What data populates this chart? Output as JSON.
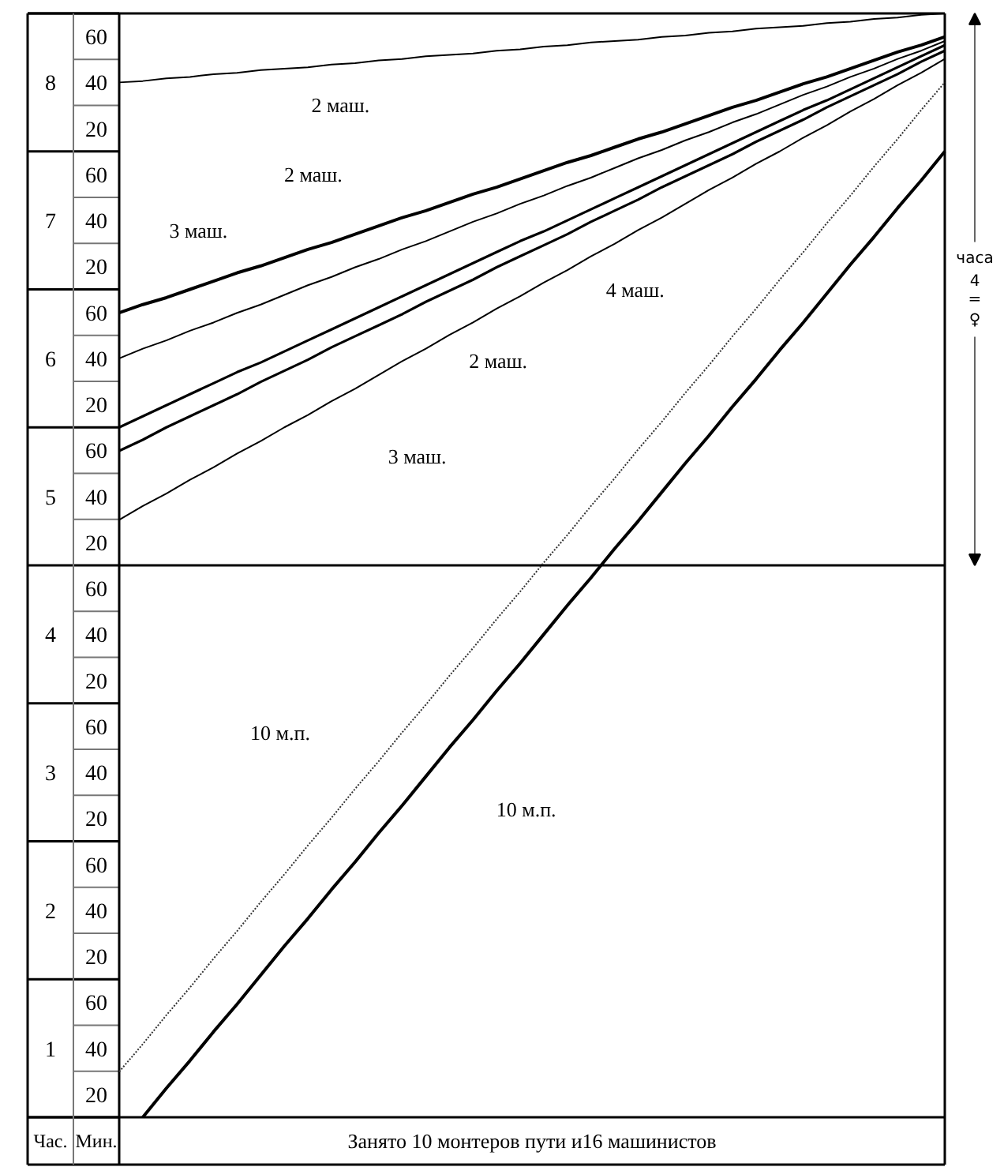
{
  "chart_data": {
    "type": "line",
    "categories": [
      null,
      null,
      null,
      null,
      null,
      null,
      null,
      null,
      null,
      null,
      null,
      null,
      null,
      null,
      null,
      null,
      null,
      null,
      null,
      null,
      null,
      null,
      null,
      null,
      null,
      null,
      null,
      null,
      null,
      null,
      null,
      null,
      null,
      null,
      null,
      null
    ],
    "ylim": [
      0.5,
      8.5
    ],
    "yticks": [
      1,
      2,
      3,
      4,
      5,
      6,
      7,
      8
    ],
    "ylabel": "Час.",
    "y2_categories": [
      "60",
      "40",
      "20",
      "60",
      "40",
      "20",
      "60",
      "40",
      "20",
      "60",
      "40",
      "20",
      "60",
      "40",
      "20",
      "60",
      "40",
      "20",
      "60",
      "40",
      "20",
      "60",
      "40",
      "20"
    ],
    "y2label": "Мин.",
    "tick_labels": "y",
    "line_style": "solid",
    "series": [
      {
        "color": "#000000",
        "values": [
          8.0,
          8.01,
          8.03,
          8.04,
          8.06,
          8.07,
          8.09,
          8.1,
          8.11,
          8.13,
          8.14,
          8.16,
          8.17,
          8.19,
          8.2,
          8.21,
          8.23,
          8.24,
          8.26,
          8.27,
          8.29,
          8.3,
          8.31,
          8.33,
          8.34,
          8.36,
          8.37,
          8.39,
          8.4,
          8.41,
          8.43,
          8.44,
          8.46,
          8.47,
          8.49,
          8.5
        ]
      },
      {
        "color": "#000000",
        "values": [
          6.33,
          6.39,
          6.44,
          6.5,
          6.56,
          6.62,
          6.67,
          6.73,
          6.79,
          6.84,
          6.9,
          6.96,
          7.02,
          7.07,
          7.13,
          7.19,
          7.24,
          7.3,
          7.36,
          7.42,
          7.47,
          7.53,
          7.59,
          7.64,
          7.7,
          7.76,
          7.82,
          7.87,
          7.93,
          7.99,
          8.04,
          8.1,
          8.16,
          8.22,
          8.27,
          8.33
        ]
      },
      {
        "color": "#000000",
        "values": [
          6.0,
          6.07,
          6.13,
          6.2,
          6.26,
          6.33,
          6.39,
          6.46,
          6.53,
          6.59,
          6.66,
          6.72,
          6.79,
          6.85,
          6.92,
          6.99,
          7.05,
          7.12,
          7.18,
          7.25,
          7.31,
          7.38,
          7.45,
          7.51,
          7.58,
          7.64,
          7.71,
          7.77,
          7.84,
          7.91,
          7.97,
          8.04,
          8.1,
          8.17,
          8.23,
          8.3
        ]
      },
      {
        "color": "#000000",
        "values": [
          5.5,
          5.58,
          5.66,
          5.74,
          5.82,
          5.9,
          5.97,
          6.05,
          6.13,
          6.21,
          6.29,
          6.37,
          6.45,
          6.53,
          6.61,
          6.69,
          6.77,
          6.85,
          6.92,
          7.0,
          7.08,
          7.16,
          7.24,
          7.32,
          7.4,
          7.48,
          7.56,
          7.64,
          7.72,
          7.8,
          7.87,
          7.95,
          8.03,
          8.11,
          8.19,
          8.27
        ]
      },
      {
        "color": "#000000",
        "values": [
          5.33,
          5.41,
          5.5,
          5.58,
          5.66,
          5.74,
          5.83,
          5.91,
          5.99,
          6.08,
          6.16,
          6.24,
          6.32,
          6.41,
          6.49,
          6.57,
          6.66,
          6.74,
          6.82,
          6.9,
          6.99,
          7.07,
          7.15,
          7.24,
          7.32,
          7.4,
          7.48,
          7.57,
          7.65,
          7.73,
          7.82,
          7.9,
          7.98,
          8.06,
          8.15,
          8.23
        ]
      },
      {
        "color": "#000000",
        "values": [
          4.83,
          4.93,
          5.02,
          5.12,
          5.21,
          5.31,
          5.4,
          5.5,
          5.59,
          5.69,
          5.78,
          5.88,
          5.98,
          6.07,
          6.17,
          6.26,
          6.36,
          6.45,
          6.55,
          6.64,
          6.74,
          6.83,
          6.93,
          7.02,
          7.12,
          7.22,
          7.31,
          7.41,
          7.5,
          7.6,
          7.69,
          7.79,
          7.88,
          7.98,
          8.07,
          8.17
        ]
      },
      {
        "color": "#333333",
        "line_style": "dotted",
        "values": [
          0.83,
          1.03,
          1.24,
          1.44,
          1.65,
          1.85,
          2.06,
          2.26,
          2.47,
          2.67,
          2.88,
          3.08,
          3.29,
          3.49,
          3.7,
          3.9,
          4.11,
          4.31,
          4.52,
          4.72,
          4.93,
          5.13,
          5.34,
          5.54,
          5.75,
          5.95,
          6.16,
          6.36,
          6.57,
          6.77,
          6.98,
          7.18,
          7.39,
          7.59,
          7.8,
          8.0
        ]
      },
      {
        "color": "#000000",
        "values": [
          null,
          0.5,
          0.71,
          0.91,
          1.12,
          1.32,
          1.53,
          1.74,
          1.94,
          2.15,
          2.35,
          2.56,
          2.76,
          2.97,
          3.18,
          3.38,
          3.59,
          3.79,
          4.0,
          4.21,
          4.41,
          4.62,
          4.82,
          5.03,
          5.24,
          5.44,
          5.65,
          5.85,
          6.06,
          6.26,
          6.47,
          6.68,
          6.88,
          7.09,
          7.29,
          7.5
        ]
      }
    ],
    "ref_lines": [
      {
        "axis": "y",
        "value": 4.5,
        "color": "#000000"
      }
    ],
    "annotations": [
      "2 маш.",
      "2 маш.",
      "3 маш.",
      "4 маш.",
      "2 маш.",
      "3 маш.",
      "10 м.п.",
      "10 м.п.",
      "Занято 10 монтеров пути и16 машинистов",
      "часа\n4\n=\n♀"
    ]
  }
}
